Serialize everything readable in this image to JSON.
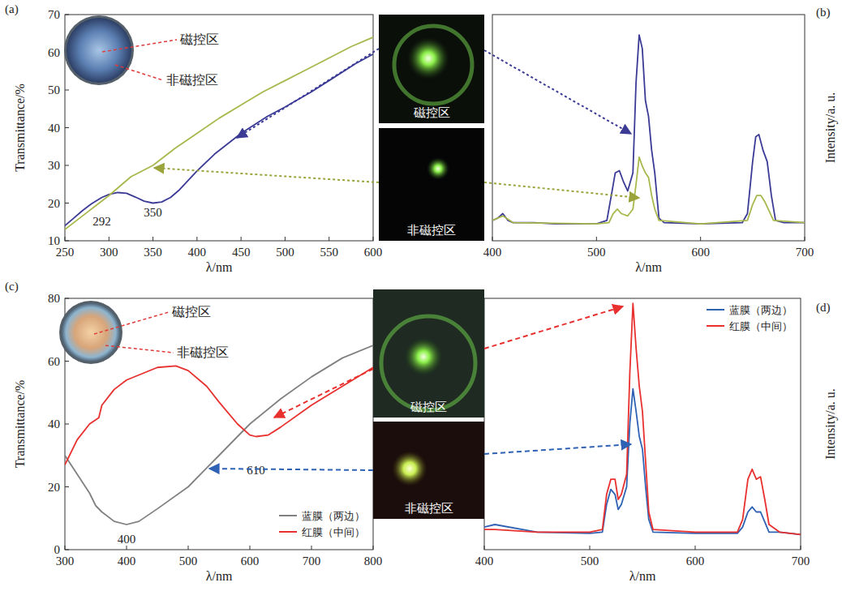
{
  "chart_data": [
    {
      "type": "line",
      "panel_label": "(a)",
      "x_label": "λ/nm",
      "y_label": "Transmittance/%",
      "xlim": [
        250,
        600
      ],
      "ylim": [
        10,
        70
      ],
      "xticks": [
        250,
        300,
        350,
        400,
        450,
        500,
        550,
        600
      ],
      "yticks": [
        10,
        20,
        30,
        40,
        50,
        60,
        70
      ],
      "series": [
        {
          "color": "#3b3b96",
          "line_style": "solid",
          "x": [
            250,
            260,
            270,
            280,
            292,
            300,
            310,
            320,
            330,
            340,
            350,
            360,
            370,
            380,
            400,
            420,
            450,
            480,
            500,
            530,
            550,
            580,
            600
          ],
          "values": [
            14,
            16,
            18,
            19.8,
            21.5,
            22.3,
            22.8,
            22.6,
            21.6,
            20.5,
            20,
            20.3,
            21.5,
            23.5,
            28.5,
            33,
            38.5,
            43,
            45.5,
            49.5,
            52.5,
            57,
            59.5
          ]
        },
        {
          "color": "#a9b84c",
          "line_style": "solid",
          "x": [
            250,
            275,
            300,
            325,
            350,
            375,
            400,
            425,
            450,
            475,
            500,
            525,
            550,
            575,
            600
          ],
          "values": [
            13,
            17.5,
            22,
            27,
            30,
            34.5,
            38.5,
            42.5,
            46,
            49.5,
            52.5,
            55.5,
            58.5,
            61.5,
            64
          ]
        }
      ],
      "annotations": [
        {
          "text": "292",
          "x": 292,
          "y": 14
        },
        {
          "text": "350",
          "x": 350,
          "y": 16.5
        }
      ],
      "inset_labels": [
        "磁控区",
        "非磁控区"
      ]
    },
    {
      "type": "line",
      "panel_label": "(b)",
      "x_label": "λ/nm",
      "y_label": "Intensity/a. u.",
      "xlim": [
        400,
        700
      ],
      "ylim": [
        0,
        100
      ],
      "xticks": [
        400,
        500,
        600,
        700
      ],
      "tick_labels": "x",
      "series": [
        {
          "color": "#3b3b96",
          "line_style": "solid",
          "x": [
            400,
            405,
            410,
            415,
            420,
            440,
            460,
            480,
            500,
            510,
            515,
            518,
            522,
            526,
            530,
            535,
            538,
            541,
            544,
            547,
            550,
            553,
            556,
            560,
            565,
            600,
            640,
            645,
            650,
            653,
            656,
            660,
            664,
            668,
            672,
            680,
            700
          ],
          "values": [
            9,
            10,
            12,
            9,
            8,
            8,
            7.5,
            7.5,
            7.5,
            9,
            22,
            30,
            31,
            26,
            22,
            30,
            70,
            91,
            85,
            62,
            55,
            40,
            30,
            10,
            8,
            7.5,
            8,
            12,
            35,
            46,
            47,
            40,
            35,
            20,
            9,
            8,
            8
          ]
        },
        {
          "color": "#a9b84c",
          "line_style": "solid",
          "x": [
            400,
            410,
            420,
            500,
            512,
            516,
            520,
            524,
            530,
            535,
            538,
            541,
            544,
            547,
            550,
            553,
            556,
            560,
            600,
            645,
            650,
            654,
            658,
            662,
            666,
            670,
            700
          ],
          "values": [
            9,
            11,
            8,
            7.5,
            8,
            12,
            14,
            12,
            11,
            14,
            25,
            37,
            33,
            30,
            28,
            20,
            14,
            9,
            7.5,
            9,
            16,
            20,
            20,
            17,
            13,
            9,
            8
          ]
        }
      ]
    },
    {
      "type": "line",
      "panel_label": "(c)",
      "x_label": "λ/nm",
      "y_label": "Transmittance/%",
      "xlim": [
        300,
        800
      ],
      "ylim": [
        0,
        80
      ],
      "xticks": [
        300,
        400,
        500,
        600,
        700,
        800
      ],
      "yticks": [
        0,
        20,
        40,
        60,
        80
      ],
      "legend": "lower right",
      "series": [
        {
          "name": "蓝膜（两边）",
          "color": "#808080",
          "line_style": "solid",
          "x": [
            300,
            320,
            340,
            350,
            360,
            380,
            400,
            420,
            450,
            500,
            550,
            600,
            650,
            700,
            750,
            800
          ],
          "values": [
            30,
            24,
            18,
            14,
            12,
            9,
            8,
            9,
            13,
            20,
            30,
            40,
            48,
            55,
            61,
            65
          ]
        },
        {
          "name": "红膜（中间）",
          "color": "#e8312f",
          "line_style": "solid",
          "x": [
            300,
            320,
            340,
            355,
            360,
            380,
            400,
            450,
            480,
            500,
            530,
            550,
            580,
            600,
            610,
            630,
            650,
            700,
            750,
            800
          ],
          "values": [
            27,
            35,
            40,
            42,
            46,
            51,
            54,
            58,
            58.5,
            57,
            52,
            47,
            40,
            36.5,
            36,
            36.5,
            39,
            46,
            52,
            58
          ]
        }
      ],
      "annotations": [
        {
          "text": "400",
          "x": 400,
          "y": 2
        },
        {
          "text": "610",
          "x": 610,
          "y": 24
        }
      ],
      "inset_labels": [
        "磁控区",
        "非磁控区"
      ]
    },
    {
      "type": "line",
      "panel_label": "(d)",
      "x_label": "λ/nm",
      "y_label": "Intensity/a. u.",
      "xlim": [
        400,
        700
      ],
      "ylim": [
        0,
        100
      ],
      "xticks": [
        400,
        500,
        600,
        700
      ],
      "tick_labels": "x",
      "legend": "upper right",
      "series": [
        {
          "name": "蓝膜（两边）",
          "color": "#2f62b5",
          "line_style": "solid",
          "x": [
            400,
            410,
            450,
            500,
            512,
            516,
            520,
            524,
            527,
            530,
            535,
            538,
            541,
            544,
            547,
            550,
            553,
            556,
            560,
            600,
            640,
            645,
            650,
            654,
            658,
            662,
            666,
            670,
            680,
            700
          ],
          "values": [
            9,
            10,
            7,
            6.5,
            7,
            18,
            24,
            22,
            16,
            18,
            25,
            50,
            64,
            55,
            45,
            40,
            25,
            12,
            7,
            6.5,
            6.5,
            9,
            15,
            17,
            15,
            15,
            11,
            7,
            7,
            6
          ]
        },
        {
          "name": "红膜（中间）",
          "color": "#e8312f",
          "line_style": "solid",
          "x": [
            400,
            410,
            450,
            500,
            512,
            516,
            520,
            524,
            527,
            530,
            535,
            538,
            541,
            544,
            547,
            550,
            553,
            556,
            560,
            600,
            640,
            645,
            650,
            654,
            658,
            662,
            666,
            670,
            680,
            700
          ],
          "values": [
            8,
            8,
            7,
            7,
            8,
            22,
            28,
            28,
            20,
            22,
            30,
            70,
            98,
            80,
            65,
            55,
            35,
            15,
            8,
            7,
            7,
            12,
            28,
            32,
            28,
            29,
            20,
            10,
            7,
            6
          ]
        }
      ]
    }
  ],
  "photos": [
    {
      "labels": [
        "磁控区",
        "非磁控区"
      ]
    },
    {
      "labels": [
        "磁控区",
        "非磁控区"
      ]
    }
  ]
}
